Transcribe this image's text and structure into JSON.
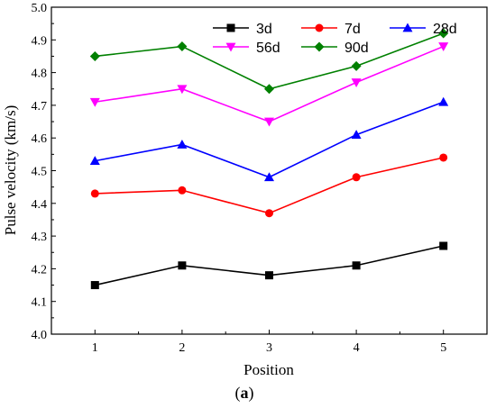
{
  "chart_data": {
    "type": "line",
    "x": [
      1,
      2,
      3,
      4,
      5
    ],
    "xlabel": "Position",
    "ylabel": "Pulse velocity (km/s)",
    "xlim": [
      0.5,
      5.5
    ],
    "ylim": [
      4.0,
      5.0
    ],
    "yticks": [
      "4.0",
      "4.1",
      "4.2",
      "4.3",
      "4.4",
      "4.5",
      "4.6",
      "4.7",
      "4.8",
      "4.9",
      "5.0"
    ],
    "xticks": [
      "1",
      "2",
      "3",
      "4",
      "5"
    ],
    "grid": false,
    "legend_position": "top-right",
    "series": [
      {
        "name": "3d",
        "color": "#000000",
        "marker": "square",
        "values": [
          4.15,
          4.21,
          4.18,
          4.21,
          4.27
        ]
      },
      {
        "name": "7d",
        "color": "#ff0000",
        "marker": "circle",
        "values": [
          4.43,
          4.44,
          4.37,
          4.48,
          4.54
        ]
      },
      {
        "name": "28d",
        "color": "#0000ff",
        "marker": "triangle-up",
        "values": [
          4.53,
          4.58,
          4.48,
          4.61,
          4.71
        ]
      },
      {
        "name": "56d",
        "color": "#ff00ff",
        "marker": "triangle-down",
        "values": [
          4.71,
          4.75,
          4.65,
          4.77,
          4.88
        ]
      },
      {
        "name": "90d",
        "color": "#008000",
        "marker": "diamond",
        "values": [
          4.85,
          4.88,
          4.75,
          4.82,
          4.92
        ]
      }
    ]
  },
  "caption": {
    "open": "(",
    "letter": "a",
    "close": ")"
  }
}
